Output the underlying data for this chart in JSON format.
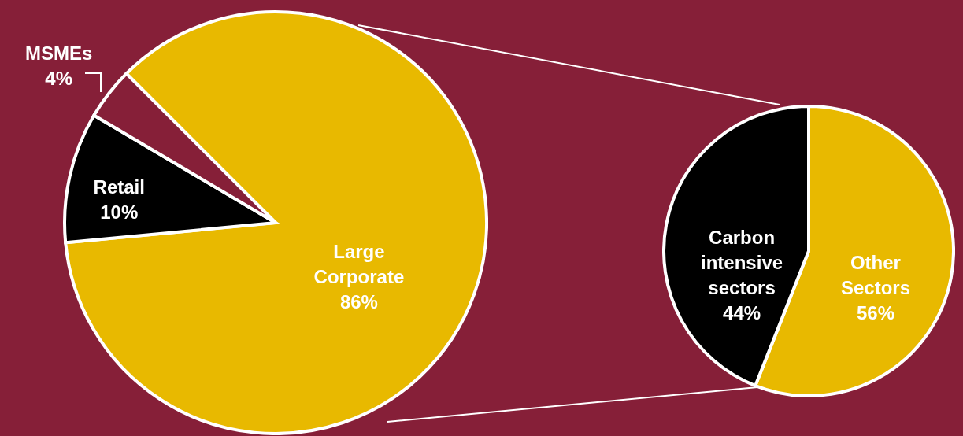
{
  "chart_data": [
    {
      "type": "pie",
      "categories": [
        "Large Corporate",
        "Retail",
        "MSMEs"
      ],
      "values": [
        86,
        10,
        4
      ],
      "colors": [
        "#e8b900",
        "#000000",
        "#861f38"
      ],
      "value_labels": [
        "86%",
        "10%",
        "4%"
      ]
    },
    {
      "type": "pie",
      "categories": [
        "Other Sectors",
        "Carbon intensive sectors"
      ],
      "values": [
        56,
        44
      ],
      "colors": [
        "#e8b900",
        "#000000"
      ],
      "value_labels": [
        "56%",
        "44%"
      ]
    }
  ]
}
